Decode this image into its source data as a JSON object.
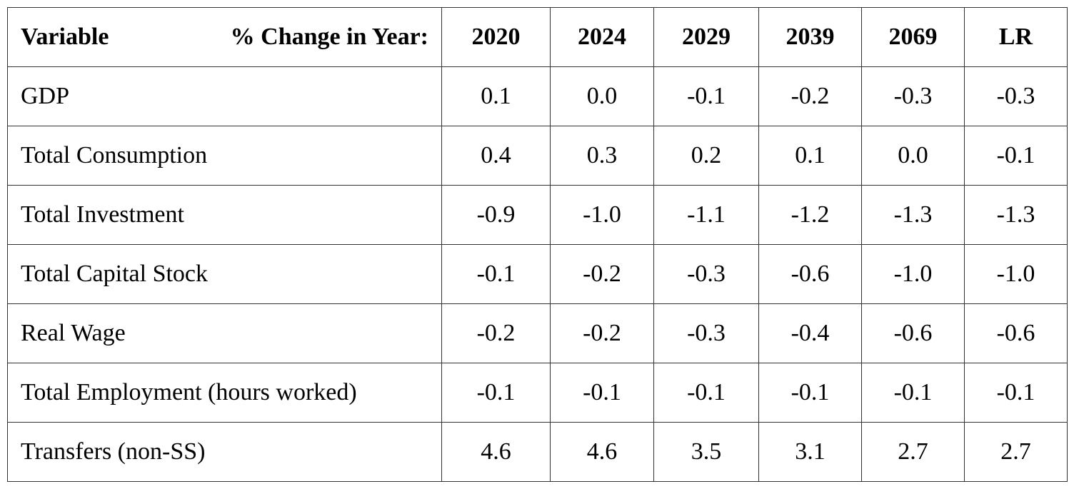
{
  "table": {
    "header_variable": "Variable",
    "header_note": "% Change in Year:",
    "columns": [
      "2020",
      "2024",
      "2029",
      "2039",
      "2069",
      "LR"
    ],
    "rows": [
      [
        "GDP",
        "0.1",
        "0.0",
        "-0.1",
        "-0.2",
        "-0.3",
        "-0.3"
      ],
      [
        "Total Consumption",
        "0.4",
        "0.3",
        "0.2",
        "0.1",
        "0.0",
        "-0.1"
      ],
      [
        "Total Investment",
        "-0.9",
        "-1.0",
        "-1.1",
        "-1.2",
        "-1.3",
        "-1.3"
      ],
      [
        "Total Capital Stock",
        "-0.1",
        "-0.2",
        "-0.3",
        "-0.6",
        "-1.0",
        "-1.0"
      ],
      [
        "Real Wage",
        "-0.2",
        "-0.2",
        "-0.3",
        "-0.4",
        "-0.6",
        "-0.6"
      ],
      [
        "Total Employment (hours worked)",
        "-0.1",
        "-0.1",
        "-0.1",
        "-0.1",
        "-0.1",
        "-0.1"
      ],
      [
        "Transfers (non-SS)",
        "4.6",
        "4.6",
        "3.5",
        "3.1",
        "2.7",
        "2.7"
      ]
    ]
  }
}
